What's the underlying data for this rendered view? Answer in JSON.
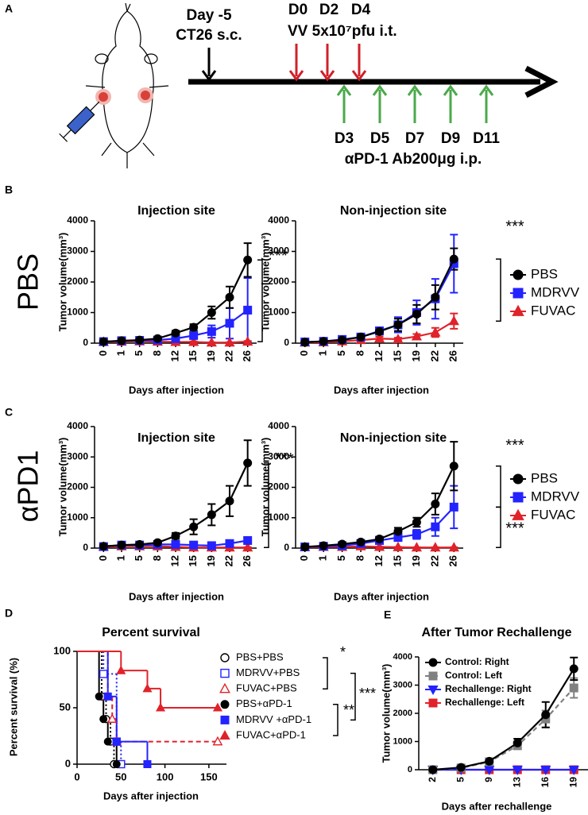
{
  "panel_labels": [
    "A",
    "B",
    "C",
    "D",
    "E"
  ],
  "row_labels": [
    "PBS",
    "αPD1"
  ],
  "timeline": {
    "tumor_day": "Day -5",
    "tumor_label": "CT26 s.c.",
    "vv_days": [
      "D0",
      "D2",
      "D4"
    ],
    "vv_label": "VV 5x10⁷pfu i.t.",
    "pd1_days": [
      "D3",
      "D5",
      "D7",
      "D9",
      "D11"
    ],
    "pd1_label": "αPD-1 Ab200μg i.p."
  },
  "chart_data": [
    {
      "type": "line",
      "title": "Injection site",
      "y_label": "Tumor volume(mm³)",
      "x_label": "Days after injection",
      "categories": [
        "0",
        "1",
        "5",
        "8",
        "12",
        "15",
        "19",
        "22",
        "26"
      ],
      "ylim": [
        0,
        4000
      ],
      "yticks": [
        0,
        1000,
        2000,
        3000,
        4000
      ],
      "annotations": [
        "***"
      ],
      "series": [
        {
          "color": "#000000",
          "marker": "circle",
          "values": [
            50,
            80,
            100,
            150,
            330,
            520,
            1000,
            1500,
            2720
          ],
          "errors": [
            20,
            20,
            30,
            50,
            80,
            100,
            200,
            350,
            550
          ]
        },
        {
          "color": "#2323ff",
          "marker": "square",
          "values": [
            50,
            80,
            90,
            100,
            150,
            250,
            380,
            650,
            1080
          ],
          "errors": [
            20,
            20,
            20,
            40,
            60,
            100,
            200,
            500,
            1050
          ]
        },
        {
          "color": "#e0222a",
          "marker": "triangle",
          "values": [
            40,
            50,
            60,
            50,
            40,
            40,
            20,
            20,
            50
          ],
          "errors": [
            10,
            10,
            20,
            20,
            20,
            20,
            10,
            10,
            20
          ]
        }
      ]
    },
    {
      "type": "line",
      "title": "Non-injection site",
      "y_label": "Tumor volume(mm³)",
      "x_label": "Days after injection",
      "categories": [
        "0",
        "1",
        "5",
        "8",
        "12",
        "15",
        "19",
        "22",
        "26"
      ],
      "ylim": [
        0,
        4000
      ],
      "yticks": [
        0,
        1000,
        2000,
        3000,
        4000
      ],
      "annotations": [
        "***"
      ],
      "series": [
        {
          "name": "PBS",
          "color": "#000000",
          "marker": "circle",
          "values": [
            30,
            60,
            100,
            200,
            380,
            600,
            950,
            1500,
            2750
          ],
          "errors": [
            10,
            20,
            40,
            60,
            100,
            200,
            300,
            400,
            350
          ]
        },
        {
          "name": "MDRVV",
          "color": "#2323ff",
          "marker": "square",
          "values": [
            40,
            60,
            120,
            200,
            400,
            600,
            1000,
            1450,
            2600
          ],
          "errors": [
            10,
            20,
            40,
            80,
            120,
            250,
            400,
            650,
            950
          ]
        },
        {
          "name": "FUVAC",
          "color": "#e0222a",
          "marker": "triangle",
          "values": [
            20,
            30,
            60,
            100,
            150,
            130,
            220,
            350,
            720
          ],
          "errors": [
            10,
            10,
            20,
            40,
            60,
            50,
            80,
            150,
            250
          ]
        }
      ]
    },
    {
      "type": "line",
      "title": "Injection site",
      "y_label": "Tumor volume(mm³)",
      "x_label": "Days after injection",
      "categories": [
        "0",
        "1",
        "5",
        "8",
        "12",
        "15",
        "19",
        "22",
        "26"
      ],
      "ylim": [
        0,
        4000
      ],
      "yticks": [
        0,
        1000,
        2000,
        3000,
        4000
      ],
      "annotations": [
        "***"
      ],
      "series": [
        {
          "color": "#000000",
          "marker": "circle",
          "values": [
            60,
            100,
            120,
            180,
            400,
            700,
            1100,
            1550,
            2800
          ],
          "errors": [
            20,
            30,
            30,
            60,
            100,
            250,
            350,
            500,
            750
          ]
        },
        {
          "color": "#2323ff",
          "marker": "square",
          "values": [
            50,
            100,
            100,
            120,
            120,
            100,
            80,
            150,
            250
          ],
          "errors": [
            20,
            30,
            30,
            40,
            40,
            40,
            40,
            60,
            100
          ]
        },
        {
          "color": "#e0222a",
          "marker": "triangle",
          "values": [
            40,
            60,
            60,
            60,
            40,
            20,
            20,
            20,
            20
          ],
          "errors": [
            10,
            10,
            10,
            10,
            10,
            10,
            10,
            10,
            10
          ]
        }
      ]
    },
    {
      "type": "line",
      "title": "Non-injection site",
      "y_label": "Tumor volume(mm³)",
      "x_label": "Days after injection",
      "categories": [
        "0",
        "1",
        "5",
        "8",
        "12",
        "15",
        "19",
        "22",
        "26"
      ],
      "ylim": [
        0,
        4000
      ],
      "yticks": [
        0,
        1000,
        2000,
        3000,
        4000
      ],
      "annotations": [
        "***",
        "***"
      ],
      "series": [
        {
          "name": "PBS",
          "color": "#000000",
          "marker": "circle",
          "values": [
            40,
            80,
            130,
            200,
            300,
            550,
            850,
            1450,
            2700
          ],
          "errors": [
            10,
            20,
            40,
            60,
            80,
            120,
            150,
            350,
            800
          ]
        },
        {
          "name": "MDRVV",
          "color": "#2323ff",
          "marker": "square",
          "values": [
            40,
            60,
            80,
            150,
            250,
            350,
            450,
            700,
            1350
          ],
          "errors": [
            10,
            20,
            30,
            50,
            80,
            100,
            150,
            300,
            700
          ]
        },
        {
          "name": "FUVAC",
          "color": "#e0222a",
          "marker": "triangle",
          "values": [
            30,
            40,
            40,
            60,
            40,
            30,
            20,
            20,
            20
          ],
          "errors": [
            10,
            10,
            10,
            10,
            10,
            10,
            10,
            10,
            10
          ]
        }
      ]
    },
    {
      "type": "step",
      "title": "Percent survival",
      "y_label": "Percent survival (%)",
      "x_label": "Days after injection",
      "xlim": [
        0,
        170
      ],
      "xticks": [
        0,
        50,
        100,
        150
      ],
      "ylim": [
        0,
        100
      ],
      "yticks": [
        0,
        50,
        100
      ],
      "annotations": [
        "*",
        "***",
        "**"
      ],
      "series": [
        {
          "name": "PBS+PBS",
          "color": "#000000",
          "marker": "circle",
          "filled": false,
          "dash": "dotted",
          "x": [
            0,
            28,
            33,
            38,
            42
          ],
          "values": [
            100,
            60,
            40,
            20,
            0
          ]
        },
        {
          "name": "MDRVV+PBS",
          "color": "#2323ff",
          "marker": "square",
          "filled": false,
          "dash": "dotted",
          "x": [
            0,
            30,
            45,
            50
          ],
          "values": [
            100,
            80,
            20,
            0
          ]
        },
        {
          "name": "FUVAC+PBS",
          "color": "#e0222a",
          "marker": "triangle",
          "filled": false,
          "dash": "dashed",
          "x": [
            0,
            35,
            40,
            45,
            160
          ],
          "values": [
            100,
            60,
            40,
            20,
            20
          ]
        },
        {
          "name": "PBS+αPD-1",
          "color": "#000000",
          "marker": "circle",
          "filled": true,
          "dash": "solid",
          "x": [
            0,
            25,
            30,
            35,
            45
          ],
          "values": [
            100,
            60,
            40,
            20,
            0
          ]
        },
        {
          "name": "MDRVV +αPD-1",
          "color": "#2323ff",
          "marker": "square",
          "filled": true,
          "dash": "solid",
          "x": [
            0,
            35,
            45,
            80
          ],
          "values": [
            100,
            60,
            20,
            0
          ]
        },
        {
          "name": "FUVAC+αPD-1",
          "color": "#e0222a",
          "marker": "triangle",
          "filled": true,
          "dash": "solid",
          "x": [
            0,
            50,
            80,
            95,
            160
          ],
          "values": [
            100,
            83,
            67,
            50,
            50
          ]
        }
      ]
    },
    {
      "type": "line",
      "title": "After Tumor Rechallenge",
      "y_label": "Tumor volume(mm³)",
      "x_label": "Days after rechallenge",
      "categories": [
        "2",
        "5",
        "9",
        "13",
        "16",
        "19"
      ],
      "ylim": [
        0,
        4000
      ],
      "yticks": [
        0,
        1000,
        2000,
        3000,
        4000
      ],
      "series": [
        {
          "name": "Control: Right",
          "color": "#000000",
          "marker": "circle",
          "dash": "solid",
          "values": [
            0,
            80,
            300,
            950,
            1950,
            3580
          ],
          "errors": [
            0,
            30,
            60,
            150,
            450,
            400
          ]
        },
        {
          "name": "Control: Left",
          "color": "#808080",
          "marker": "square",
          "dash": "dashed",
          "values": [
            0,
            60,
            280,
            850,
            1800,
            2900
          ],
          "errors": [
            0,
            30,
            50,
            100,
            300,
            350
          ]
        },
        {
          "name": "Rechallenge: Right",
          "color": "#2323ff",
          "marker": "triangle-down",
          "dash": "solid",
          "values": [
            0,
            0,
            0,
            0,
            0,
            0
          ],
          "errors": [
            0,
            0,
            0,
            0,
            0,
            0
          ]
        },
        {
          "name": "Rechallenge: Left",
          "color": "#e0222a",
          "marker": "square",
          "dash": "solid",
          "values": [
            0,
            0,
            0,
            0,
            0,
            0
          ],
          "errors": [
            0,
            0,
            0,
            0,
            0,
            0
          ]
        }
      ]
    }
  ]
}
